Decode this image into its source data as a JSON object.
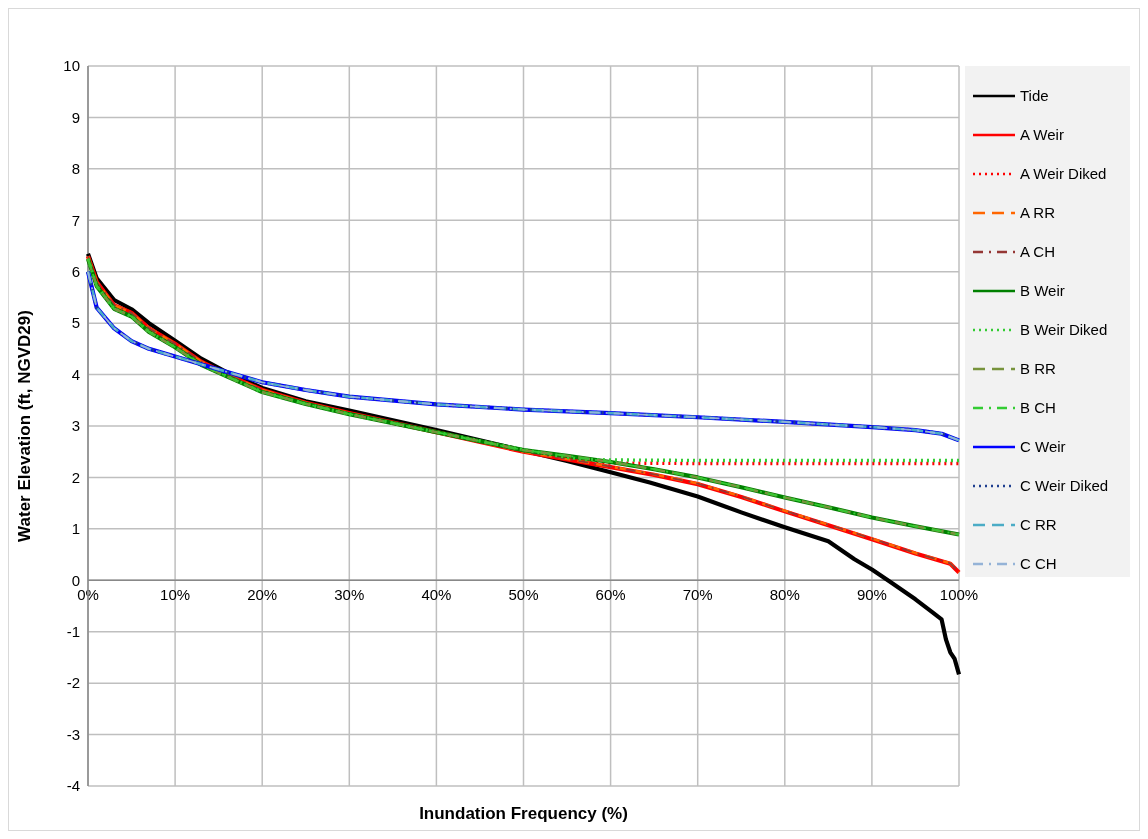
{
  "chart_data": {
    "type": "line",
    "xlabel": "Inundation Frequency (%)",
    "ylabel": "Water Elevation (ft, NGVD29)",
    "xlim": [
      0,
      100
    ],
    "ylim": [
      -4,
      10
    ],
    "xticks": [
      {
        "value": 0,
        "label": "0%"
      },
      {
        "value": 10,
        "label": "10%"
      },
      {
        "value": 20,
        "label": "20%"
      },
      {
        "value": 30,
        "label": "30%"
      },
      {
        "value": 40,
        "label": "40%"
      },
      {
        "value": 50,
        "label": "50%"
      },
      {
        "value": 60,
        "label": "60%"
      },
      {
        "value": 70,
        "label": "70%"
      },
      {
        "value": 80,
        "label": "80%"
      },
      {
        "value": 90,
        "label": "90%"
      },
      {
        "value": 100,
        "label": "100%"
      }
    ],
    "yticks": [
      -4,
      -3,
      -2,
      -1,
      0,
      1,
      2,
      3,
      4,
      5,
      6,
      7,
      8,
      9,
      10
    ],
    "grid": true,
    "legend": "right",
    "marker": "none",
    "series": [
      {
        "name": "Tide",
        "color": "#000000",
        "line_style": "solid",
        "x": [
          0,
          1,
          3,
          5,
          7,
          10,
          13,
          16,
          20,
          25,
          30,
          40,
          50,
          55,
          60,
          64.5,
          70,
          75,
          80,
          85,
          88,
          90,
          92,
          95,
          97,
          98,
          98.5,
          99,
          99.5,
          100
        ],
        "values": [
          6.35,
          5.87,
          5.45,
          5.27,
          5.0,
          4.66,
          4.31,
          4.04,
          3.74,
          3.48,
          3.3,
          2.92,
          2.52,
          2.32,
          2.1,
          1.9,
          1.63,
          1.32,
          1.03,
          0.76,
          0.41,
          0.21,
          -0.02,
          -0.37,
          -0.63,
          -0.76,
          -1.15,
          -1.4,
          -1.53,
          -1.83
        ]
      },
      {
        "name": "A Weir",
        "color": "#ff0000",
        "line_style": "solid",
        "x": [
          0,
          1,
          3,
          5,
          7,
          10,
          13,
          16,
          20,
          25,
          30,
          40,
          50,
          55,
          60,
          65,
          70,
          75,
          80,
          85,
          90,
          95,
          99,
          100
        ],
        "values": [
          6.3,
          5.8,
          5.35,
          5.2,
          4.9,
          4.6,
          4.25,
          4.0,
          3.7,
          3.45,
          3.25,
          2.88,
          2.5,
          2.35,
          2.2,
          2.05,
          1.87,
          1.62,
          1.34,
          1.07,
          0.8,
          0.52,
          0.32,
          0.15
        ]
      },
      {
        "name": "A Weir Diked",
        "color": "#ff0000",
        "line_style": "dotted",
        "x": [
          0,
          1,
          3,
          5,
          7,
          10,
          13,
          16,
          20,
          25,
          30,
          40,
          50,
          55,
          57,
          60,
          70,
          80,
          90,
          100
        ],
        "values": [
          6.3,
          5.8,
          5.35,
          5.2,
          4.9,
          4.6,
          4.25,
          4.0,
          3.7,
          3.45,
          3.25,
          2.88,
          2.53,
          2.36,
          2.3,
          2.28,
          2.27,
          2.27,
          2.27,
          2.27
        ]
      },
      {
        "name": "A RR",
        "color": "#ff6600",
        "line_style": "dashed",
        "x": [
          0,
          1,
          3,
          5,
          7,
          10,
          13,
          16,
          20,
          25,
          30,
          40,
          50,
          55,
          60,
          65,
          70,
          75,
          80,
          85,
          90,
          95,
          99,
          100
        ],
        "values": [
          6.3,
          5.8,
          5.35,
          5.2,
          4.9,
          4.6,
          4.25,
          4.0,
          3.7,
          3.45,
          3.25,
          2.88,
          2.5,
          2.36,
          2.21,
          2.06,
          1.88,
          1.63,
          1.35,
          1.08,
          0.81,
          0.53,
          0.33,
          0.16
        ]
      },
      {
        "name": "A CH",
        "color": "#953735",
        "line_style": "dashdot",
        "x": [
          0,
          1,
          3,
          5,
          7,
          10,
          13,
          16,
          20,
          25,
          30,
          40,
          50,
          55,
          60,
          65,
          70,
          75,
          80,
          85,
          90,
          95,
          99,
          100
        ],
        "values": [
          6.3,
          5.8,
          5.35,
          5.2,
          4.9,
          4.6,
          4.25,
          4.0,
          3.7,
          3.45,
          3.25,
          2.88,
          2.5,
          2.36,
          2.21,
          2.06,
          1.88,
          1.63,
          1.35,
          1.08,
          0.81,
          0.53,
          0.33,
          0.16
        ]
      },
      {
        "name": "B Weir",
        "color": "#008000",
        "line_style": "solid",
        "x": [
          0,
          1,
          3,
          5,
          7,
          10,
          13,
          16,
          20,
          25,
          30,
          40,
          50,
          55,
          60,
          65,
          70,
          75,
          80,
          85,
          90,
          95,
          100
        ],
        "values": [
          6.25,
          5.72,
          5.28,
          5.13,
          4.83,
          4.53,
          4.19,
          3.96,
          3.66,
          3.43,
          3.23,
          2.88,
          2.53,
          2.42,
          2.3,
          2.16,
          2.0,
          1.81,
          1.61,
          1.42,
          1.22,
          1.05,
          0.89
        ]
      },
      {
        "name": "B Weir Diked",
        "color": "#33cc33",
        "line_style": "dotted",
        "x": [
          0,
          1,
          3,
          5,
          7,
          10,
          13,
          16,
          20,
          25,
          30,
          40,
          50,
          55,
          57,
          60,
          70,
          80,
          90,
          100
        ],
        "values": [
          6.25,
          5.72,
          5.28,
          5.13,
          4.83,
          4.53,
          4.19,
          3.96,
          3.66,
          3.43,
          3.23,
          2.88,
          2.54,
          2.39,
          2.35,
          2.34,
          2.33,
          2.33,
          2.33,
          2.33
        ]
      },
      {
        "name": "B RR",
        "color": "#77933c",
        "line_style": "dashed",
        "x": [
          0,
          1,
          3,
          5,
          7,
          10,
          13,
          16,
          20,
          25,
          30,
          40,
          50,
          55,
          60,
          65,
          70,
          75,
          80,
          85,
          90,
          95,
          100
        ],
        "values": [
          6.25,
          5.72,
          5.28,
          5.13,
          4.83,
          4.53,
          4.19,
          3.96,
          3.66,
          3.43,
          3.23,
          2.88,
          2.53,
          2.42,
          2.3,
          2.16,
          2.0,
          1.81,
          1.61,
          1.42,
          1.22,
          1.05,
          0.89
        ]
      },
      {
        "name": "B CH",
        "color": "#33cc33",
        "line_style": "dashdot",
        "x": [
          0,
          1,
          3,
          5,
          7,
          10,
          13,
          16,
          20,
          25,
          30,
          40,
          50,
          55,
          60,
          65,
          70,
          75,
          80,
          85,
          90,
          95,
          100
        ],
        "values": [
          6.25,
          5.72,
          5.28,
          5.13,
          4.83,
          4.53,
          4.19,
          3.96,
          3.66,
          3.43,
          3.23,
          2.88,
          2.53,
          2.42,
          2.3,
          2.16,
          2.0,
          1.81,
          1.61,
          1.42,
          1.22,
          1.05,
          0.89
        ]
      },
      {
        "name": "C Weir",
        "color": "#0000ff",
        "line_style": "solid",
        "x": [
          0,
          1,
          3,
          5,
          7,
          10,
          15,
          20,
          25,
          30,
          40,
          50,
          60,
          70,
          80,
          90,
          95,
          98,
          100
        ],
        "values": [
          6.0,
          5.3,
          4.9,
          4.65,
          4.5,
          4.35,
          4.1,
          3.85,
          3.7,
          3.57,
          3.42,
          3.32,
          3.25,
          3.17,
          3.08,
          2.98,
          2.92,
          2.85,
          2.72
        ]
      },
      {
        "name": "C Weir Diked",
        "color": "#1f3f8f",
        "line_style": "dotted",
        "x": [
          0,
          1,
          3,
          5,
          7,
          10,
          15,
          20,
          25,
          30,
          40,
          50,
          60,
          70,
          80,
          90,
          95,
          98,
          100
        ],
        "values": [
          6.0,
          5.3,
          4.9,
          4.65,
          4.5,
          4.35,
          4.1,
          3.85,
          3.7,
          3.57,
          3.42,
          3.32,
          3.25,
          3.17,
          3.08,
          2.98,
          2.92,
          2.85,
          2.72
        ]
      },
      {
        "name": "C RR",
        "color": "#4bacc6",
        "line_style": "dashed",
        "x": [
          0,
          1,
          3,
          5,
          7,
          10,
          15,
          20,
          25,
          30,
          40,
          50,
          60,
          70,
          80,
          90,
          95,
          98,
          100
        ],
        "values": [
          6.0,
          5.3,
          4.9,
          4.65,
          4.5,
          4.35,
          4.1,
          3.85,
          3.7,
          3.57,
          3.42,
          3.32,
          3.25,
          3.17,
          3.08,
          2.98,
          2.92,
          2.85,
          2.72
        ]
      },
      {
        "name": "C CH",
        "color": "#95b3d7",
        "line_style": "dashdot",
        "x": [
          0,
          1,
          3,
          5,
          7,
          10,
          15,
          20,
          25,
          30,
          40,
          50,
          60,
          70,
          80,
          90,
          95,
          98,
          100
        ],
        "values": [
          6.0,
          5.3,
          4.9,
          4.65,
          4.5,
          4.35,
          4.1,
          3.85,
          3.7,
          3.57,
          3.42,
          3.32,
          3.25,
          3.17,
          3.08,
          2.98,
          2.92,
          2.85,
          2.72
        ]
      }
    ]
  }
}
